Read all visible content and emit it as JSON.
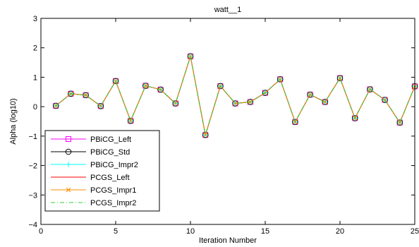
{
  "chart_data": {
    "type": "line",
    "title": "watt__1",
    "xlabel": "Iteration Number",
    "ylabel": "Alpha (log10)",
    "xlim": [
      0,
      25
    ],
    "ylim": [
      -4,
      3
    ],
    "xticks": [
      0,
      5,
      10,
      15,
      20,
      25
    ],
    "yticks": [
      -4,
      -3,
      -2,
      -1,
      0,
      1,
      2,
      3
    ],
    "xtick_labels": [
      "0",
      "5",
      "10",
      "15",
      "20",
      "25"
    ],
    "ytick_labels": [
      "−4",
      "−3",
      "−2",
      "−1",
      "0",
      "1",
      "2",
      "3"
    ],
    "grid": false,
    "legend_position": "lower-left",
    "x": [
      1,
      2,
      3,
      4,
      5,
      6,
      7,
      8,
      9,
      10,
      11,
      12,
      13,
      14,
      15,
      16,
      17,
      18,
      19,
      20,
      21,
      22,
      23,
      24,
      25
    ],
    "series": [
      {
        "name": "PBiCG_Left",
        "color": "#ff00ff",
        "marker": "square",
        "dash": "solid",
        "values": [
          0.03,
          0.44,
          0.39,
          0.02,
          0.87,
          -0.48,
          0.71,
          0.58,
          0.11,
          1.71,
          -0.96,
          0.7,
          0.11,
          0.16,
          0.47,
          0.93,
          -0.52,
          0.41,
          0.16,
          0.97,
          -0.39,
          0.59,
          0.23,
          -0.54,
          0.69
        ]
      },
      {
        "name": "PBiCG_Std",
        "color": "#000000",
        "marker": "circle",
        "dash": "solid",
        "values": [
          0.03,
          0.44,
          0.39,
          0.02,
          0.87,
          -0.48,
          0.71,
          0.58,
          0.11,
          1.71,
          -0.96,
          0.7,
          0.11,
          0.16,
          0.47,
          0.93,
          -0.52,
          0.41,
          0.16,
          0.97,
          -0.39,
          0.59,
          0.23,
          -0.54,
          0.69
        ]
      },
      {
        "name": "PBiCG_Impr2",
        "color": "#00ffff",
        "marker": "plus",
        "dash": "solid",
        "values": [
          0.03,
          0.44,
          0.39,
          0.02,
          0.87,
          -0.48,
          0.71,
          0.58,
          0.11,
          1.71,
          -0.96,
          0.7,
          0.11,
          0.16,
          0.47,
          0.93,
          -0.52,
          0.41,
          0.16,
          0.97,
          -0.39,
          0.59,
          0.23,
          -0.54,
          0.69
        ]
      },
      {
        "name": "PCGS_Left",
        "color": "#ff0000",
        "marker": "none",
        "dash": "solid",
        "values": [
          0.03,
          0.44,
          0.39,
          0.02,
          0.87,
          -0.48,
          0.71,
          0.58,
          0.11,
          1.71,
          -0.96,
          0.7,
          0.11,
          0.16,
          0.47,
          0.93,
          -0.52,
          0.41,
          0.16,
          0.97,
          -0.39,
          0.59,
          0.23,
          -0.54,
          0.69
        ]
      },
      {
        "name": "PCGS_Impr1",
        "color": "#ff8c00",
        "marker": "x",
        "dash": "solid",
        "values": [
          0.03,
          0.44,
          0.39,
          0.02,
          0.87,
          -0.48,
          0.71,
          0.58,
          0.11,
          1.71,
          -0.96,
          0.7,
          0.11,
          0.16,
          0.47,
          0.93,
          -0.52,
          0.41,
          0.16,
          0.97,
          -0.39,
          0.59,
          0.23,
          -0.54,
          0.69
        ]
      },
      {
        "name": "PCGS_Impr2",
        "color": "#33cc33",
        "marker": "none",
        "dash": "dashdot",
        "values": [
          0.03,
          0.44,
          0.39,
          0.02,
          0.87,
          -0.48,
          0.71,
          0.58,
          0.11,
          1.71,
          -0.96,
          0.7,
          0.11,
          0.16,
          0.47,
          0.93,
          -0.52,
          0.41,
          0.16,
          0.97,
          -0.39,
          0.59,
          0.23,
          -0.54,
          0.69
        ]
      }
    ]
  }
}
